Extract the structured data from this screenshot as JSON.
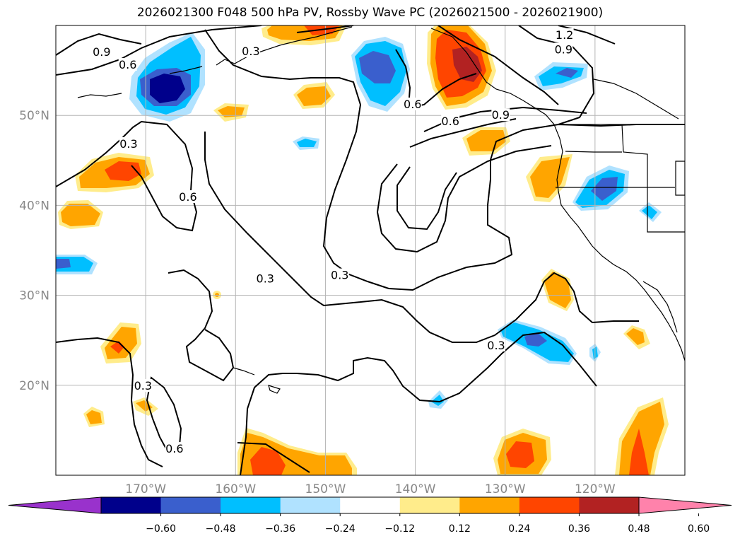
{
  "chart_data": {
    "type": "map-contour",
    "title": "2026021300 F048 500 hPa PV, Rossby Wave PC (2026021500 - 2026021900)",
    "lon_range": [
      -180,
      -110
    ],
    "lat_range": [
      10,
      60
    ],
    "x_ticks": [
      {
        "lon": -170,
        "label": "170°W"
      },
      {
        "lon": -160,
        "label": "160°W"
      },
      {
        "lon": -150,
        "label": "150°W"
      },
      {
        "lon": -140,
        "label": "140°W"
      },
      {
        "lon": -130,
        "label": "130°W"
      },
      {
        "lon": -120,
        "label": "120°W"
      }
    ],
    "y_ticks": [
      {
        "lat": 50,
        "label": "50°N"
      },
      {
        "lat": 40,
        "label": "40°N"
      },
      {
        "lat": 30,
        "label": "30°N"
      },
      {
        "lat": 20,
        "label": "20°N"
      }
    ],
    "colorbar": {
      "levels": [
        -0.6,
        -0.48,
        -0.36,
        -0.24,
        -0.12,
        0.12,
        0.24,
        0.36,
        0.48,
        0.6
      ],
      "tick_labels": [
        "−0.60",
        "−0.48",
        "−0.36",
        "−0.24",
        "−0.12",
        "0.12",
        "0.24",
        "0.36",
        "0.48",
        "0.60"
      ],
      "colors": [
        "#9932cc",
        "#00008b",
        "#3a5fcd",
        "#00bfff",
        "#b0e2ff",
        "#ffffff",
        "#ffec8b",
        "#ffa500",
        "#ff4500",
        "#b22222",
        "#ff82ab"
      ],
      "extend": "both"
    },
    "contour_labels": [
      {
        "text": "0.9",
        "lon": -174.9,
        "lat": 57
      },
      {
        "text": "0.6",
        "lon": -172,
        "lat": 55.6
      },
      {
        "text": "0.3",
        "lon": -158.3,
        "lat": 57.1
      },
      {
        "text": "1.2",
        "lon": -123.4,
        "lat": 58.9
      },
      {
        "text": "0.9",
        "lon": -123.5,
        "lat": 57.3
      },
      {
        "text": "0.6",
        "lon": -140.3,
        "lat": 51.2
      },
      {
        "text": "0.6",
        "lon": -136.1,
        "lat": 49.3
      },
      {
        "text": "0.9",
        "lon": -130.5,
        "lat": 50
      },
      {
        "text": "0.3",
        "lon": -171.9,
        "lat": 46.8
      },
      {
        "text": "0.6",
        "lon": -165.3,
        "lat": 40.9
      },
      {
        "text": "0.3",
        "lon": -156.7,
        "lat": 31.8
      },
      {
        "text": "0.3",
        "lon": -148.4,
        "lat": 32.2
      },
      {
        "text": "0.3",
        "lon": -170.3,
        "lat": 19.9
      },
      {
        "text": "0.6",
        "lon": -166.8,
        "lat": 12.9
      },
      {
        "text": "0.3",
        "lon": -131,
        "lat": 24.4
      }
    ]
  }
}
